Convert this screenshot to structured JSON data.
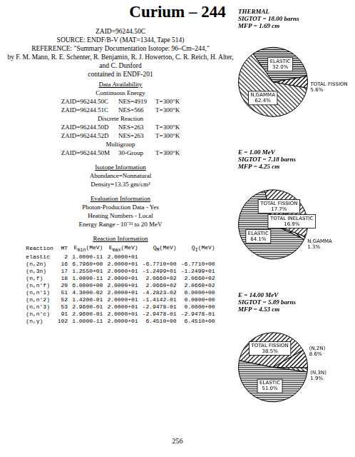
{
  "header": {
    "title": "Curium – 244",
    "zaid": "ZAID=96244.50C",
    "source": "SOURCE: ENDF/B-V (MAT=1344, Tape 514)",
    "reference": "REFERENCE: \"Summary Documentation Isotope: 96–Cm–244,\"",
    "authors": "by F. M. Mann, R. E. Schenter, R. Benjamin, R. J. Howerton, C. R. Reich, H. Alter, and C. Dunford",
    "contained": "contained in ENDF-201"
  },
  "data_availability": {
    "heading": "Data Availability",
    "groups": [
      {
        "label": "Continuous Energy",
        "rows": [
          [
            "ZAID=96244.50C",
            "NES=4919",
            "T=300°K"
          ],
          [
            "ZAID=96244.51C",
            "NES=566",
            "T=300°K"
          ]
        ]
      },
      {
        "label": "Discrete Reaction",
        "rows": [
          [
            "ZAID=96244.50D",
            "NES=263",
            "T=300°K"
          ],
          [
            "ZAID=96244.52D",
            "NES=263",
            "T=300°K"
          ]
        ]
      },
      {
        "label": "Multigroup",
        "rows": [
          [
            "ZAID=96244.50M",
            "30-Group",
            "T=300°K"
          ]
        ]
      }
    ]
  },
  "isotope_information": {
    "heading": "Isotope Information",
    "lines": [
      "Abundance=Nonnatural",
      "Density=13.35 gm/cm³"
    ]
  },
  "evaluation_information": {
    "heading": "Evaluation Information",
    "lines": [
      "Photon-Production Data - Yes",
      "Heating Numbers - Local",
      "Energy Range - 10⁻¹¹ to 20 MeV"
    ]
  },
  "reaction_information": {
    "heading": "Reaction Information",
    "columns": [
      {
        "text": "Reaction"
      },
      {
        "text": "MT"
      },
      {
        "text": "E",
        "sub": "min",
        "after": "(MeV)"
      },
      {
        "text": "E",
        "sub": "max",
        "after": "(MeV)"
      },
      {
        "text": "Q",
        "sub": "M",
        "after": "(MeV)"
      },
      {
        "text": "Q",
        "sub": "I",
        "after": "(MeV)"
      }
    ],
    "rows": [
      [
        "elastic",
        2,
        "1.0000-11",
        "2.0000+01",
        null,
        null
      ],
      [
        "(n,2n)",
        16,
        "6.7960+00",
        "2.0000+01",
        "-6.7710+00",
        "-6.7710+00"
      ],
      [
        "(n,3n)",
        17,
        "1.2550+01",
        "2.0000+01",
        "-1.2499+01",
        "-1.2499+01"
      ],
      [
        "(n,f)",
        18,
        "1.0000-11",
        "2.0000+01",
        "2.0660+02",
        "2.0660+02"
      ],
      [
        "(n,n'f)",
        20,
        "6.0000+00",
        "2.0000+01",
        "2.0660+02",
        "2.0660+02"
      ],
      [
        "(n,n'1)",
        51,
        "4.3000-02",
        "2.0000+01",
        "-4.2823-02",
        "0.0000+00"
      ],
      [
        "(n,n'2)",
        52,
        "1.4200-01",
        "2.0000+01",
        "-1.4142-01",
        "0.0000+00"
      ],
      [
        "(n,n'3)",
        53,
        "2.9600-01",
        "2.0000+01",
        "-2.9478-01",
        "0.0000+00"
      ],
      [
        "(n,n'c)",
        91,
        "2.9600-01",
        "2.0000+01",
        "-2.9478-01",
        "-2.9478-01"
      ],
      [
        "(n,γ)",
        102,
        "1.0000-11",
        "2.0000+01",
        "6.4510+00",
        "6.4510+00"
      ]
    ]
  },
  "chart_data": [
    {
      "type": "pie",
      "title": "THERMAL",
      "subtitle": [
        "SIGTOT = 18.00 barns",
        "MFP = 1.69 cm"
      ],
      "categories": [
        "TOTAL FISSION",
        "N,GAMMA",
        "ELASTIC"
      ],
      "values": [
        5.6,
        62.4,
        32.0
      ],
      "value_labels": [
        "5.6%",
        "62.4%",
        "32.0%"
      ],
      "colors": [
        "#000000",
        "#444444",
        "#222222"
      ],
      "data_labels": true
    },
    {
      "type": "pie",
      "title": "E = 1.00 MeV",
      "subtitle": [
        "SIGTOT = 7.18 barns",
        "MFP = 4.25 cm"
      ],
      "categories": [
        "TOTAL INELASTIC",
        "N,GAMMA",
        "ELASTIC",
        "TOTAL FISSION"
      ],
      "values": [
        16.9,
        1.3,
        64.1,
        17.7
      ],
      "value_labels": [
        "16.9%",
        "1.3%",
        "64.1%",
        "17.7%"
      ],
      "colors": [
        "#333333",
        "#000000",
        "#444444",
        "#222222"
      ],
      "data_labels": true
    },
    {
      "type": "pie",
      "title": "E = 14.00 MeV",
      "subtitle": [
        "SIGTOT = 5.89 barns",
        "MFP = 4.53 cm"
      ],
      "categories": [
        "(N,2N)",
        "(N,3N)",
        "ELASTIC",
        "TOTAL FISSION"
      ],
      "values": [
        8.6,
        1.9,
        51.0,
        38.5
      ],
      "value_labels": [
        "8.6%",
        "1.9%",
        "51.0%",
        "38.5%"
      ],
      "colors": [
        "#000000",
        "#333333",
        "#444444",
        "#222222"
      ],
      "data_labels": true
    }
  ],
  "page_number": "256"
}
